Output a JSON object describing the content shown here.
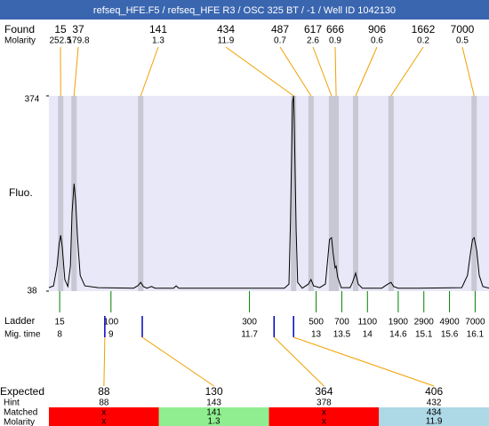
{
  "title": "refseq_HFE.F5 / refseq_HFE R3 / OSC 325 BT / -1 / Well ID 1042130",
  "title_color": "#3a66b0",
  "found": {
    "label": "Found",
    "molarity_label": "Molarity",
    "color": "#f0a000",
    "band_color": "#c8c8d4",
    "peaks": [
      {
        "size": 15,
        "molarity": 252.5,
        "time": 8.02
      },
      {
        "size": 37,
        "molarity": 179.8,
        "time": 8.28
      },
      {
        "size": 141,
        "molarity": 1.3,
        "time": 9.58
      },
      {
        "size": 434,
        "molarity": 11.9,
        "time": 12.56
      },
      {
        "size": 487,
        "molarity": 0.7,
        "time": 12.9
      },
      {
        "size": 617,
        "molarity": 2.6,
        "time": 13.3
      },
      {
        "size": 666,
        "molarity": 0.9,
        "time": 13.39
      },
      {
        "size": 906,
        "molarity": 0.6,
        "time": 13.77
      },
      {
        "size": 1662,
        "molarity": 0.2,
        "time": 14.46
      },
      {
        "size": 7000,
        "molarity": 0.5,
        "time": 16.08
      }
    ]
  },
  "plot": {
    "ylabel": "Fluo.",
    "background": "#e8e8f8",
    "xlim": [
      7.79,
      16.37
    ],
    "ylim": [
      38,
      374
    ],
    "yticks": [
      38,
      374
    ],
    "trace": {
      "x": [
        7.79,
        7.88,
        7.95,
        7.99,
        8.02,
        8.05,
        8.1,
        8.16,
        8.21,
        8.24,
        8.28,
        8.31,
        8.35,
        8.4,
        8.49,
        8.75,
        9.44,
        9.52,
        9.58,
        9.63,
        9.7,
        9.79,
        9.86,
        10.22,
        10.27,
        10.32,
        12.38,
        12.47,
        12.5,
        12.54,
        12.56,
        12.57,
        12.61,
        12.64,
        12.73,
        12.85,
        12.9,
        12.95,
        13.07,
        13.18,
        13.23,
        13.26,
        13.3,
        13.33,
        13.37,
        13.39,
        13.42,
        13.49,
        13.66,
        13.71,
        13.77,
        13.82,
        13.9,
        14.28,
        14.4,
        14.46,
        14.51,
        14.6,
        14.98,
        15.84,
        15.95,
        16.01,
        16.05,
        16.08,
        16.13,
        16.18,
        16.25,
        16.37
      ],
      "y": [
        44,
        47,
        81,
        119,
        134,
        114,
        58,
        46,
        81,
        172,
        223,
        195,
        127,
        65,
        47,
        44,
        43,
        47,
        53,
        46,
        43,
        46,
        43,
        43,
        47,
        43,
        43,
        50,
        157,
        363,
        374,
        340,
        142,
        53,
        43,
        50,
        58,
        47,
        44,
        50,
        96,
        127,
        130,
        104,
        78,
        81,
        62,
        44,
        44,
        53,
        69,
        50,
        43,
        43,
        50,
        53,
        46,
        43,
        43,
        44,
        65,
        104,
        127,
        130,
        108,
        65,
        46,
        43
      ]
    }
  },
  "ladder": {
    "label": "Ladder",
    "time_label": "Mig. time",
    "color": "#008000",
    "sizes": [
      15,
      100,
      300,
      500,
      700,
      1100,
      1900,
      2900,
      4900,
      7000
    ],
    "times": [
      8,
      9,
      11.7,
      13,
      13.5,
      14,
      14.6,
      15.1,
      15.6,
      16.1
    ]
  },
  "expected": {
    "label": "Expected",
    "hint_label": "Hint",
    "matched_label": "Matched",
    "molarity_label": "Molarity",
    "marker_color": "#0000c0",
    "items": [
      {
        "expected": 88,
        "hint": 88,
        "matched": "x",
        "molarity": "x",
        "time": 8.88,
        "color": "#ff0000"
      },
      {
        "expected": 130,
        "hint": 143,
        "matched": 141,
        "molarity": 1.3,
        "time": 9.61,
        "color": "#90ee90"
      },
      {
        "expected": 364,
        "hint": 378,
        "matched": "x",
        "molarity": "x",
        "time": 12.18,
        "color": "#ff0000"
      },
      {
        "expected": 406,
        "hint": 432,
        "matched": 434,
        "molarity": 11.9,
        "time": 12.56,
        "color": "#add8e6"
      }
    ]
  }
}
